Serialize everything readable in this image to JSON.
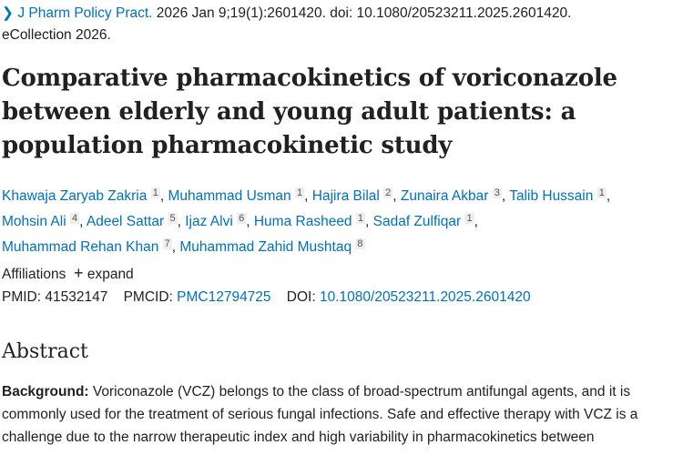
{
  "citation": {
    "journal": "J Pharm Policy Pract.",
    "details": "2026 Jan 9;19(1):2601420. doi: 10.1080/20523211.2025.2601420.",
    "collection": "eCollection 2026."
  },
  "title_lines": [
    "Comparative pharmacokinetics of voriconazole",
    "between elderly and young adult patients: a",
    "population pharmacokinetic study"
  ],
  "authors": [
    {
      "name": "Khawaja Zaryab Zakria",
      "aff": "1"
    },
    {
      "name": "Muhammad Usman",
      "aff": "1"
    },
    {
      "name": "Hajira Bilal",
      "aff": "2"
    },
    {
      "name": "Zunaira Akbar",
      "aff": "3"
    },
    {
      "name": "Talib Hussain",
      "aff": "1"
    },
    {
      "name": "Mohsin Ali",
      "aff": "4"
    },
    {
      "name": "Adeel Sattar",
      "aff": "5"
    },
    {
      "name": "Ijaz Alvi",
      "aff": "6"
    },
    {
      "name": "Huma Rasheed",
      "aff": "1"
    },
    {
      "name": "Sadaf Zulfiqar",
      "aff": "1"
    },
    {
      "name": "Muhammad Rehan Khan",
      "aff": "7"
    },
    {
      "name": "Muhammad Zahid Mushtaq",
      "aff": "8"
    }
  ],
  "affiliations": {
    "label": "Affiliations",
    "expand": "expand"
  },
  "ids": {
    "pmid_label": "PMID:",
    "pmid": "41532147",
    "pmcid_label": "PMCID:",
    "pmcid": "PMC12794725",
    "doi_label": "DOI:",
    "doi": "10.1080/20523211.2025.2601420"
  },
  "abstract": {
    "heading": "Abstract",
    "bg_label": "Background:",
    "lines": [
      " Voriconazole (VCZ) belongs to the class of broad-spectrum antifungal agents, and it is",
      "commonly used for the treatment of serious fungal infections. Safe and effective therapy with VCZ is a",
      "challenge due to the narrow therapeutic index and high variability in pharmacokinetics between"
    ]
  }
}
